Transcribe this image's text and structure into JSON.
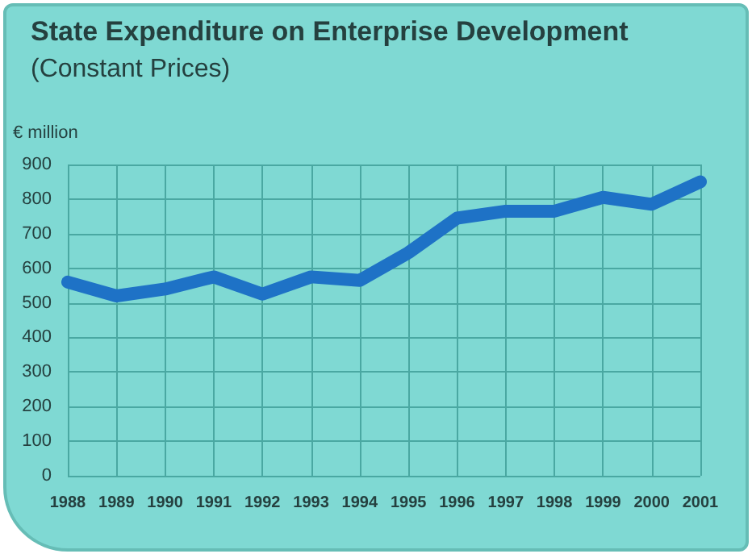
{
  "chart_data": {
    "type": "line",
    "title": "State Expenditure on Enterprise Development",
    "subtitle": "(Constant Prices)",
    "ylabel": "€ million",
    "categories": [
      "1988",
      "1989",
      "1990",
      "1991",
      "1992",
      "1993",
      "1994",
      "1995",
      "1996",
      "1997",
      "1998",
      "1999",
      "2000",
      "2001"
    ],
    "series": [
      {
        "color": "#1e72c6",
        "values": [
          560,
          520,
          540,
          575,
          525,
          575,
          565,
          645,
          745,
          765,
          765,
          805,
          785,
          850
        ]
      }
    ],
    "ylim": [
      0,
      900
    ],
    "yticks": [
      0,
      100,
      200,
      300,
      400,
      500,
      600,
      700,
      800,
      900
    ],
    "grid": true,
    "marker": "none",
    "line_style": "solid"
  }
}
